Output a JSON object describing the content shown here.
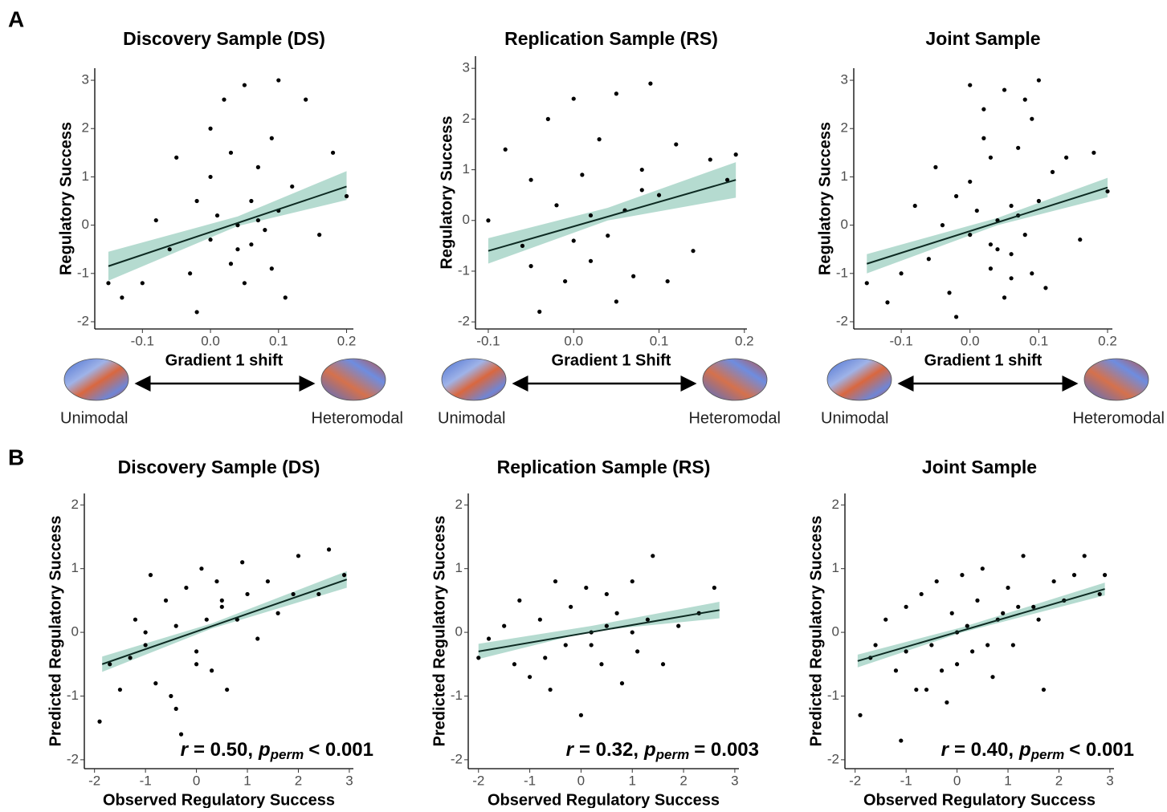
{
  "panels": [
    "A",
    "B"
  ],
  "chart_data": [
    {
      "type": "scatter",
      "title": "Discovery Sample (DS)",
      "xlabel": "Gradient 1 shift",
      "ylabel": "Regulatory Success",
      "x": [
        -0.15,
        -0.13,
        -0.1,
        -0.08,
        -0.06,
        -0.05,
        -0.03,
        -0.02,
        0.0,
        0.0,
        0.01,
        0.02,
        0.03,
        0.03,
        0.04,
        0.05,
        0.05,
        0.06,
        0.06,
        0.07,
        0.08,
        0.09,
        0.1,
        0.1,
        0.11,
        0.12,
        0.14,
        0.16,
        0.18,
        0.2,
        -0.02,
        0.04,
        0.07,
        0.0,
        0.09
      ],
      "y": [
        -1.2,
        -1.5,
        -1.2,
        0.1,
        -0.5,
        1.4,
        -1.0,
        0.5,
        2.0,
        -0.3,
        0.2,
        2.6,
        -0.8,
        1.5,
        0.0,
        -1.2,
        2.9,
        0.5,
        -0.4,
        1.2,
        -0.1,
        1.8,
        3.0,
        0.3,
        -1.5,
        0.8,
        2.6,
        -0.2,
        1.5,
        0.6,
        -1.8,
        -0.5,
        0.1,
        1.0,
        -0.9
      ],
      "color": "#000000",
      "band_color": "#a8d5c8",
      "fit": {
        "x": [
          -0.15,
          0.2
        ],
        "y": [
          -0.85,
          0.8
        ]
      },
      "band": {
        "x": [
          -0.15,
          0.04,
          0.2
        ],
        "lower": [
          -1.15,
          -0.02,
          0.52
        ],
        "upper": [
          -0.55,
          0.18,
          1.12
        ]
      },
      "xlim": [
        -0.17,
        0.21
      ],
      "ylim": [
        -2.15,
        3.25
      ],
      "xticks": [
        -0.1,
        {
          "value": 0,
          "label": "0.0"
        },
        0.1,
        0.2
      ],
      "yticks": [
        -2,
        -1,
        0,
        1,
        2,
        3
      ],
      "gradient_labels": [
        "Unimodal",
        "Heteromodal"
      ]
    },
    {
      "type": "scatter",
      "title": "Replication Sample (RS)",
      "xlabel": "Gradient 1 Shift",
      "ylabel": "Regulatory Success",
      "x": [
        -0.1,
        -0.08,
        -0.06,
        -0.05,
        -0.04,
        -0.03,
        -0.02,
        -0.01,
        0.0,
        0.01,
        0.02,
        0.03,
        0.04,
        0.05,
        0.06,
        0.07,
        0.08,
        0.09,
        0.1,
        0.11,
        0.12,
        0.14,
        0.16,
        0.18,
        0.19,
        0.0,
        0.05,
        0.02,
        -0.05,
        0.08
      ],
      "y": [
        0.0,
        1.4,
        -0.5,
        0.8,
        -1.8,
        2.0,
        0.3,
        -1.2,
        2.4,
        0.9,
        -0.8,
        1.6,
        -0.3,
        2.5,
        0.2,
        -1.1,
        1.0,
        2.7,
        0.5,
        -1.2,
        1.5,
        -0.6,
        1.2,
        0.8,
        1.3,
        -0.4,
        -1.6,
        0.1,
        -0.9,
        0.6
      ],
      "color": "#000000",
      "band_color": "#a8d5c8",
      "fit": {
        "x": [
          -0.1,
          0.19
        ],
        "y": [
          -0.6,
          0.8
        ]
      },
      "band": {
        "x": [
          -0.1,
          0.04,
          0.19
        ],
        "lower": [
          -0.85,
          0.0,
          0.45
        ],
        "upper": [
          -0.35,
          0.25,
          1.15
        ]
      },
      "xlim": [
        -0.115,
        0.203
      ],
      "ylim": [
        -2.14,
        3.24
      ],
      "xticks": [
        -0.1,
        {
          "value": 0,
          "label": "0.0"
        },
        0.1,
        0.2
      ],
      "yticks": [
        -2,
        -1,
        0,
        1,
        2,
        3
      ],
      "gradient_labels": [
        "Unimodal",
        "Heteromodal"
      ]
    },
    {
      "type": "scatter",
      "title": "Joint Sample",
      "xlabel": "Gradient 1 shift",
      "ylabel": "Regulatory Success",
      "x": [
        -0.15,
        -0.12,
        -0.1,
        -0.08,
        -0.06,
        -0.05,
        -0.03,
        -0.02,
        0.0,
        0.0,
        0.01,
        0.02,
        0.03,
        0.03,
        0.04,
        0.05,
        0.05,
        0.06,
        0.06,
        0.07,
        0.08,
        0.09,
        0.1,
        0.1,
        0.11,
        0.12,
        0.14,
        0.16,
        0.18,
        0.2,
        -0.02,
        0.04,
        0.07,
        0.0,
        0.09,
        -0.04,
        0.02,
        0.06,
        0.03,
        0.08
      ],
      "y": [
        -1.2,
        -1.6,
        -1.0,
        0.4,
        -0.7,
        1.2,
        -1.4,
        0.6,
        2.9,
        -0.2,
        0.3,
        2.4,
        -0.9,
        1.4,
        0.1,
        -1.5,
        2.8,
        0.4,
        -0.6,
        1.6,
        -0.2,
        2.2,
        3.0,
        0.5,
        -1.3,
        1.1,
        1.4,
        -0.3,
        1.5,
        0.7,
        -1.9,
        -0.5,
        0.2,
        0.9,
        -1.0,
        0.0,
        1.8,
        -1.1,
        -0.4,
        2.6
      ],
      "color": "#000000",
      "band_color": "#a8d5c8",
      "fit": {
        "x": [
          -0.15,
          0.2
        ],
        "y": [
          -0.8,
          0.78
        ]
      },
      "band": {
        "x": [
          -0.15,
          0.04,
          0.2
        ],
        "lower": [
          -1.0,
          0.0,
          0.58
        ],
        "upper": [
          -0.6,
          0.15,
          0.98
        ]
      },
      "xlim": [
        -0.169,
        0.207
      ],
      "ylim": [
        -2.15,
        3.25
      ],
      "xticks": [
        -0.1,
        {
          "value": 0,
          "label": "0.0"
        },
        0.1,
        0.2
      ],
      "yticks": [
        -2,
        -1,
        0,
        1,
        2,
        3
      ],
      "gradient_labels": [
        "Unimodal",
        "Heteromodal"
      ]
    },
    {
      "type": "scatter",
      "title": "Discovery Sample (DS)",
      "xlabel": "Observed Regulatory Success",
      "ylabel": "Predicted Regulatory Success",
      "x": [
        -1.9,
        -1.7,
        -1.5,
        -1.3,
        -1.2,
        -1.0,
        -0.9,
        -0.8,
        -0.6,
        -0.5,
        -0.4,
        -0.3,
        -0.2,
        0.0,
        0.1,
        0.2,
        0.3,
        0.4,
        0.5,
        0.6,
        0.8,
        0.9,
        1.0,
        1.2,
        1.4,
        1.6,
        1.9,
        2.0,
        2.4,
        2.6,
        2.9,
        -1.0,
        0.0,
        0.5,
        -0.4
      ],
      "y": [
        -1.4,
        -0.5,
        -0.9,
        -0.4,
        0.2,
        -0.2,
        0.9,
        -0.8,
        0.5,
        -1.0,
        0.1,
        -1.6,
        0.7,
        -0.3,
        1.0,
        0.2,
        -0.6,
        0.8,
        0.4,
        -0.9,
        0.2,
        1.1,
        0.6,
        -0.1,
        0.8,
        0.3,
        0.6,
        1.2,
        0.6,
        1.3,
        0.9,
        0.0,
        -0.5,
        0.5,
        -1.2
      ],
      "color": "#000000",
      "band_color": "#a8d5c8",
      "fit": {
        "x": [
          -1.85,
          2.95
        ],
        "y": [
          -0.5,
          0.83
        ]
      },
      "band": {
        "x": [
          -1.85,
          0.3,
          2.95
        ],
        "lower": [
          -0.62,
          0.06,
          0.7
        ],
        "upper": [
          -0.38,
          0.14,
          0.96
        ]
      },
      "xlim": [
        -2.2,
        3.08
      ],
      "ylim": [
        -2.14,
        2.18
      ],
      "xticks": [
        -2,
        -1,
        0,
        1,
        2,
        3
      ],
      "yticks": [
        -2,
        -1,
        0,
        1,
        2
      ],
      "annotation": {
        "r": "r",
        "eq": "= 0.50,",
        "p": "p",
        "sub": "perm",
        "rel": "< 0.001"
      }
    },
    {
      "type": "scatter",
      "title": "Replication Sample (RS)",
      "xlabel": "Observed Regulatory Success",
      "ylabel": "Predicted Regulatory Success",
      "x": [
        -2.0,
        -1.8,
        -1.5,
        -1.3,
        -1.2,
        -1.0,
        -0.8,
        -0.6,
        -0.5,
        -0.3,
        -0.2,
        0.0,
        0.1,
        0.2,
        0.4,
        0.5,
        0.7,
        0.8,
        1.0,
        1.1,
        1.3,
        1.4,
        1.6,
        1.9,
        2.3,
        2.6,
        0.2,
        -0.7,
        1.0,
        0.5
      ],
      "y": [
        -0.4,
        -0.1,
        0.1,
        -0.5,
        0.5,
        -0.7,
        0.2,
        -0.9,
        0.8,
        -0.2,
        0.4,
        -1.3,
        0.7,
        0.0,
        -0.5,
        0.6,
        0.3,
        -0.8,
        0.8,
        -0.3,
        0.2,
        1.2,
        -0.5,
        0.1,
        0.3,
        0.7,
        -0.2,
        -0.4,
        0.0,
        0.1
      ],
      "color": "#000000",
      "band_color": "#a8d5c8",
      "fit": {
        "x": [
          -2.0,
          2.7
        ],
        "y": [
          -0.3,
          0.35
        ]
      },
      "band": {
        "x": [
          -2.0,
          0.2,
          2.7
        ],
        "lower": [
          -0.42,
          0.02,
          0.22
        ],
        "upper": [
          -0.18,
          0.1,
          0.48
        ]
      },
      "xlim": [
        -2.2,
        3.08
      ],
      "ylim": [
        -2.14,
        2.18
      ],
      "xticks": [
        -2,
        -1,
        0,
        1,
        2,
        3
      ],
      "yticks": [
        -2,
        -1,
        0,
        1,
        2
      ],
      "annotation": {
        "r": "r",
        "eq": "= 0.32,",
        "p": "p",
        "sub": "perm",
        "rel": "= 0.003"
      }
    },
    {
      "type": "scatter",
      "title": "Joint Sample",
      "xlabel": "Observed Regulatory Success",
      "ylabel": "Predicted Regulatory Success",
      "x": [
        -1.9,
        -1.7,
        -1.6,
        -1.4,
        -1.2,
        -1.1,
        -1.0,
        -0.8,
        -0.7,
        -0.5,
        -0.4,
        -0.2,
        -0.1,
        0.0,
        0.1,
        0.3,
        0.4,
        0.5,
        0.7,
        0.8,
        1.0,
        1.1,
        1.3,
        1.5,
        1.7,
        1.9,
        2.1,
        2.3,
        2.5,
        2.8,
        2.9,
        -1.0,
        0.2,
        0.6,
        -0.3,
        1.2,
        0.0,
        -0.6,
        0.9,
        1.6
      ],
      "y": [
        -1.3,
        -0.4,
        -0.2,
        0.2,
        -0.6,
        -1.7,
        0.4,
        -0.9,
        0.6,
        -0.2,
        0.8,
        -1.1,
        0.3,
        -0.5,
        0.9,
        -0.3,
        0.5,
        1.0,
        -0.7,
        0.2,
        0.7,
        -0.2,
        1.2,
        0.4,
        -0.9,
        0.8,
        0.5,
        0.9,
        1.2,
        0.6,
        0.9,
        -0.3,
        0.1,
        -0.2,
        -0.6,
        0.4,
        0.0,
        -0.9,
        0.3,
        0.2
      ],
      "color": "#000000",
      "band_color": "#a8d5c8",
      "fit": {
        "x": [
          -1.95,
          2.9
        ],
        "y": [
          -0.45,
          0.68
        ]
      },
      "band": {
        "x": [
          -1.95,
          0.1,
          2.9
        ],
        "lower": [
          -0.55,
          0.0,
          0.58
        ],
        "upper": [
          -0.35,
          0.08,
          0.78
        ]
      },
      "xlim": [
        -2.2,
        3.08
      ],
      "ylim": [
        -2.14,
        2.18
      ],
      "xticks": [
        -2,
        -1,
        0,
        1,
        2,
        3
      ],
      "yticks": [
        -2,
        -1,
        0,
        1,
        2
      ],
      "annotation": {
        "r": "r",
        "eq": "= 0.40,",
        "p": "p",
        "sub": "perm",
        "rel": "< 0.001"
      }
    }
  ]
}
